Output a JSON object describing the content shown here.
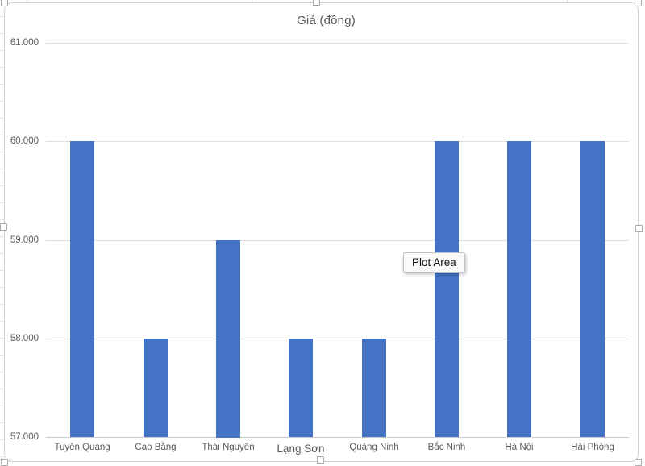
{
  "chart_data": {
    "type": "bar",
    "title": "Giá (đồng)",
    "categories": [
      "Tuyên Quang",
      "Cao Bằng",
      "Thái Nguyên",
      "Lạng Sơn",
      "Quảng Ninh",
      "Bắc Ninh",
      "Hà Nội",
      "Hải Phòng"
    ],
    "values": [
      60000,
      58000,
      59000,
      58000,
      58000,
      60000,
      60000,
      60000
    ],
    "y_ticks": [
      {
        "label": "61.000",
        "value": 61000
      },
      {
        "label": "60.000",
        "value": 60000
      },
      {
        "label": "59.000",
        "value": 59000
      },
      {
        "label": "58.000",
        "value": 58000
      },
      {
        "label": "57.000",
        "value": 57000
      }
    ],
    "ylim": [
      57000,
      61000
    ],
    "xlabel": "",
    "ylabel": "",
    "grid": true,
    "legend_position": "none",
    "bar_color": "#4472C4"
  },
  "tooltip": {
    "label": "Plot Area"
  },
  "colors": {
    "gridline": "#dedede",
    "axis_line": "#c9c9c9",
    "text_gray": "#595959",
    "bar_blue": "#4472C4"
  }
}
